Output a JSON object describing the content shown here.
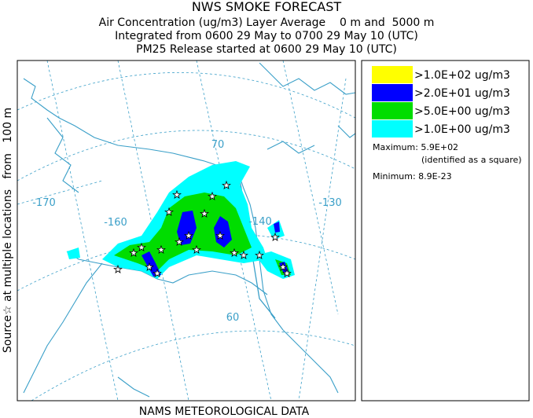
{
  "header": {
    "title": "NWS SMOKE FORECAST",
    "lines": [
      "Air Concentration (ug/m3) Layer Average    0 m and  5000 m",
      "Integrated from 0600 29 May to 0700 29 May 10 (UTC)",
      "PM25 Release started at 0600 29 May 10 (UTC)"
    ]
  },
  "side_label": "Source☆ at multiple locations   from   100 m",
  "footer": "NAMS METEOROLOGICAL DATA",
  "map": {
    "longitude_labels": [
      "-170",
      "-160",
      "-140",
      "-130"
    ],
    "latitude_labels": [
      "70",
      "60"
    ]
  },
  "legend": {
    "items": [
      {
        "label": ">1.0E+02 ug/m3",
        "color": "#ffff00"
      },
      {
        "label": ">2.0E+01 ug/m3",
        "color": "#0000ff"
      },
      {
        "label": ">5.0E+00 ug/m3",
        "color": "#00dd00"
      },
      {
        "label": ">1.0E+00 ug/m3",
        "color": "#00ffff"
      }
    ],
    "maximum": "Maximum: 5.9E+02",
    "maximum_note": "(identified as a square)",
    "minimum": "Minimum: 8.9E-23"
  }
}
